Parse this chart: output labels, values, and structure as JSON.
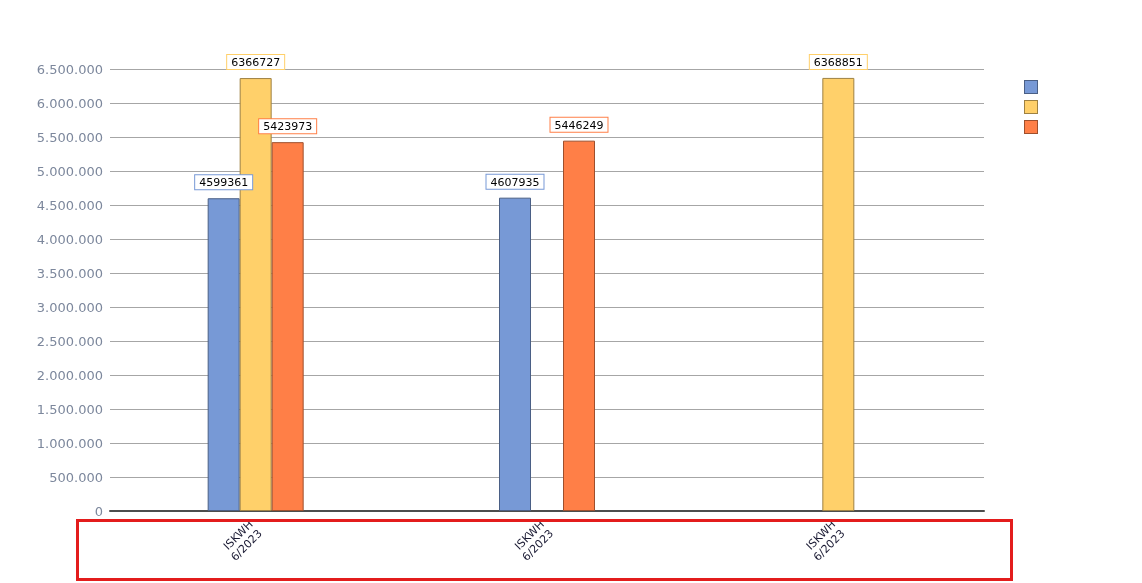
{
  "chart_data": {
    "type": "bar",
    "categories": [
      "ISKWH\n6/2023",
      "ISKWH\n6/2023",
      "ISKWH\n6/2023"
    ],
    "series": [
      {
        "color": "#7799d6",
        "values": [
          4599361,
          4607935,
          null
        ]
      },
      {
        "color": "#ffd06a",
        "values": [
          6366727,
          null,
          6368851
        ]
      },
      {
        "color": "#ff7f47",
        "values": [
          5423973,
          5446249,
          null
        ]
      }
    ],
    "ylim": [
      0,
      6500000
    ],
    "yticks": [
      0,
      {
        "value": 500000,
        "label": "500.000"
      },
      {
        "value": 1000000,
        "label": "1.000.000"
      },
      {
        "value": 1500000,
        "label": "1.500.000"
      },
      {
        "value": 2000000,
        "label": "2.000.000"
      },
      {
        "value": 2500000,
        "label": "2.500.000"
      },
      {
        "value": 3000000,
        "label": "3.000.000"
      },
      {
        "value": 3500000,
        "label": "3.500.000"
      },
      {
        "value": 4000000,
        "label": "4.000.000"
      },
      {
        "value": 4500000,
        "label": "4.500.000"
      },
      {
        "value": 5000000,
        "label": "5.000.000"
      },
      {
        "value": 5500000,
        "label": "5.500.000"
      },
      {
        "value": 6000000,
        "label": "6.000.000"
      },
      {
        "value": 6500000,
        "label": "6.500.000"
      }
    ],
    "grid": "y",
    "data_labels": true
  }
}
